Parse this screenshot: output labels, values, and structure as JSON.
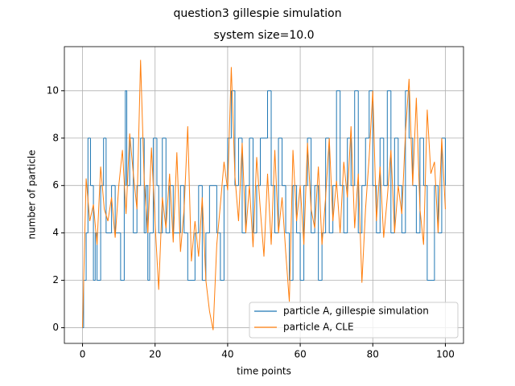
{
  "chart_data": {
    "type": "line",
    "title": "question3 gillespie simulation",
    "subtitle": "system size=10.0",
    "x_label": "time points",
    "y_label": "number of particle",
    "xlim": [
      -5,
      105
    ],
    "ylim": [
      -0.66,
      11.86
    ],
    "xticks": [
      0,
      20,
      40,
      60,
      80,
      100
    ],
    "yticks": [
      0,
      2,
      4,
      6,
      8,
      10
    ],
    "grid": true,
    "legend": "lower right",
    "series": [
      {
        "name": "particle A, gillespie simulation",
        "color": "#1f77b4",
        "drawstyle": "steps-post",
        "x": [
          0,
          0.3,
          1,
          1.5,
          2.2,
          3,
          3.5,
          4,
          5,
          5.8,
          6.5,
          8,
          9,
          10.5,
          11.5,
          11.8,
          12.2,
          13,
          14,
          15,
          16,
          17,
          17.5,
          18,
          18.5,
          19.5,
          20.5,
          21,
          22,
          23,
          24,
          25,
          27,
          28,
          29,
          31,
          32,
          33,
          34,
          35,
          37,
          38,
          39,
          40,
          41,
          42,
          43,
          44,
          45,
          46,
          47,
          48,
          49,
          51,
          52,
          53,
          54,
          55,
          56,
          57,
          58,
          59,
          60,
          61,
          62,
          63,
          64,
          65,
          66,
          67,
          68,
          69,
          70,
          71,
          72,
          73,
          74,
          75,
          76,
          77,
          78,
          79,
          80,
          81,
          82,
          83,
          84,
          85,
          86,
          87,
          88,
          89,
          90,
          91,
          92,
          93,
          94,
          95,
          97,
          98,
          99,
          100
        ],
        "values": [
          0,
          2,
          4,
          8,
          6,
          2,
          4,
          2,
          6,
          8,
          4,
          6,
          4,
          2,
          6,
          10,
          6,
          8,
          4,
          6,
          8,
          4,
          6,
          2,
          4,
          8,
          6,
          4,
          8,
          4,
          6,
          4,
          6,
          4,
          2,
          4,
          6,
          2,
          4,
          6,
          4,
          2,
          6,
          8,
          10,
          6,
          8,
          4,
          6,
          8,
          4,
          6,
          8,
          10,
          6,
          4,
          8,
          6,
          4,
          2,
          6,
          4,
          2,
          6,
          8,
          4,
          6,
          2,
          4,
          8,
          4,
          6,
          10,
          6,
          4,
          8,
          6,
          10,
          4,
          6,
          8,
          10,
          6,
          4,
          8,
          6,
          10,
          4,
          8,
          6,
          4,
          10,
          8,
          6,
          4,
          8,
          6,
          2,
          6,
          4,
          8,
          6
        ]
      },
      {
        "name": "particle A, CLE",
        "color": "#ff7f0e",
        "drawstyle": "default",
        "x": [
          0,
          1,
          2,
          3,
          4,
          5,
          6,
          7,
          8,
          9,
          10,
          11,
          12,
          13,
          14,
          15,
          16,
          17,
          18,
          19,
          20,
          21,
          22,
          23,
          24,
          25,
          26,
          27,
          28,
          29,
          30,
          31,
          32,
          33,
          34,
          35,
          36,
          37,
          38,
          39,
          40,
          41,
          42,
          43,
          44,
          45,
          46,
          47,
          48,
          49,
          50,
          51,
          52,
          53,
          54,
          55,
          56,
          57,
          58,
          59,
          60,
          61,
          62,
          63,
          64,
          65,
          66,
          67,
          68,
          69,
          70,
          71,
          72,
          73,
          74,
          75,
          76,
          77,
          78,
          79,
          80,
          81,
          82,
          83,
          84,
          85,
          86,
          87,
          88,
          89,
          90,
          91,
          92,
          93,
          94,
          95,
          96,
          97,
          98,
          99,
          100
        ],
        "values": [
          0,
          6.3,
          4.5,
          5.2,
          3.5,
          6.8,
          5.0,
          4.5,
          5.5,
          3.8,
          6.0,
          7.5,
          4.8,
          8.2,
          6.5,
          5.0,
          11.3,
          6.2,
          4.0,
          7.6,
          4.4,
          1.6,
          5.5,
          4.2,
          6.5,
          3.6,
          7.4,
          3.2,
          5.0,
          8.5,
          2.8,
          4.5,
          3.0,
          5.5,
          2.0,
          0.7,
          -0.1,
          3.5,
          5.2,
          7.0,
          5.8,
          11.0,
          6.4,
          4.5,
          7.8,
          4.0,
          6.0,
          3.4,
          7.2,
          5.0,
          3.0,
          6.5,
          3.5,
          7.5,
          4.0,
          5.5,
          3.2,
          1.1,
          7.5,
          4.5,
          6.0,
          3.5,
          7.8,
          5.0,
          4.2,
          6.8,
          3.5,
          5.5,
          8.0,
          4.5,
          6.2,
          4.0,
          7.0,
          5.5,
          8.5,
          4.2,
          6.5,
          1.9,
          5.0,
          7.2,
          10.0,
          4.5,
          6.8,
          3.8,
          5.5,
          7.5,
          4.0,
          6.0,
          4.8,
          8.2,
          10.5,
          6.0,
          9.7,
          5.0,
          3.5,
          9.2,
          6.5,
          7.0,
          4.0,
          8.0,
          5.0
        ]
      }
    ]
  }
}
